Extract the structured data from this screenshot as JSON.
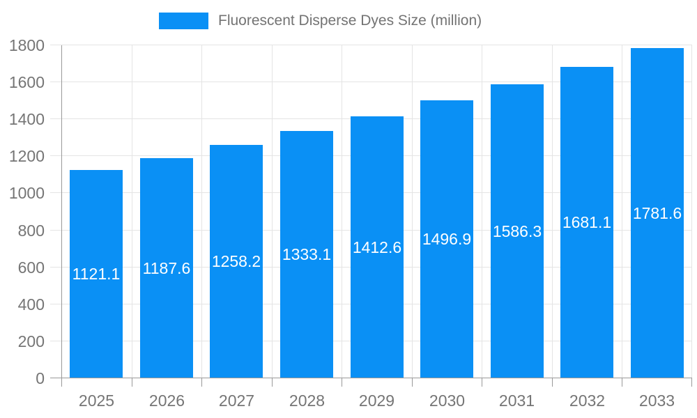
{
  "chart_data": {
    "type": "bar",
    "title": "Fluorescent Disperse Dyes Size (million)",
    "legend": [
      "Fluorescent Disperse Dyes Size (million)"
    ],
    "legend_position": "top",
    "categories": [
      "2025",
      "2026",
      "2027",
      "2028",
      "2029",
      "2030",
      "2031",
      "2032",
      "2033"
    ],
    "values": [
      1121.1,
      1187.6,
      1258.2,
      1333.1,
      1412.6,
      1496.9,
      1586.3,
      1681.1,
      1781.6
    ],
    "value_labels": [
      "1121.1",
      "1187.6",
      "1258.2",
      "1333.1",
      "1412.6",
      "1496.9",
      "1586.3",
      "1681.1",
      "1781.6"
    ],
    "xlabel": "",
    "ylabel": "",
    "ylim": [
      0,
      1800
    ],
    "yticks": [
      0,
      200,
      400,
      600,
      800,
      1000,
      1200,
      1400,
      1600,
      1800
    ],
    "grid": true,
    "value_labels_position": "center-of-bar",
    "colors": {
      "bar": "#0A90F5",
      "axis_line": "#999999",
      "grid_line": "#e4e4e4",
      "tick_text": "#757575",
      "value_label_text": "#ffffff",
      "legend_text": "#737373"
    }
  }
}
